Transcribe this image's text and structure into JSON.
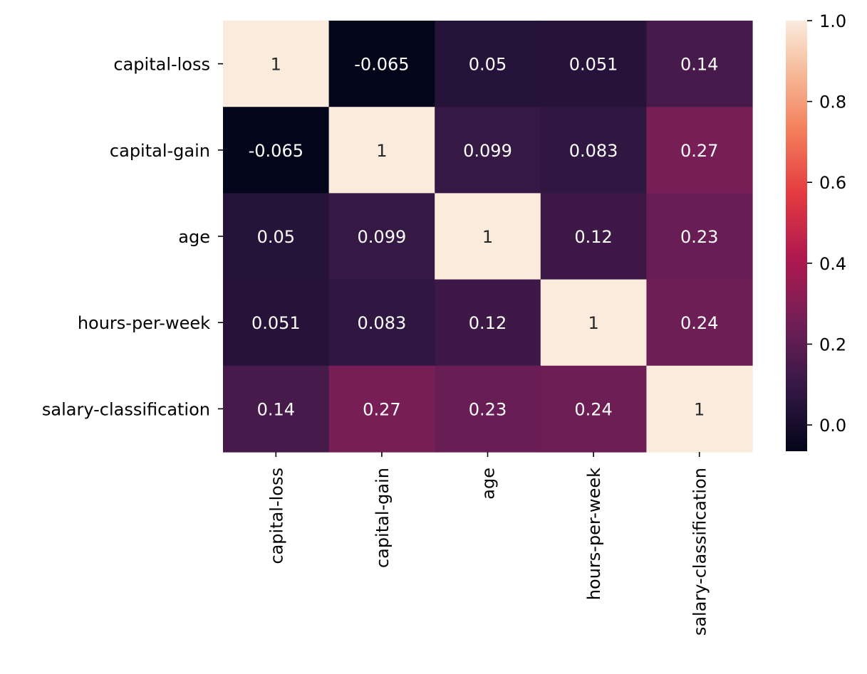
{
  "chart_data": {
    "type": "heatmap",
    "title": "",
    "xlabel": "",
    "ylabel": "",
    "rows": [
      "capital-loss",
      "capital-gain",
      "age",
      "hours-per-week",
      "salary-classification"
    ],
    "columns": [
      "capital-loss",
      "capital-gain",
      "age",
      "hours-per-week",
      "salary-classification"
    ],
    "values": [
      [
        1,
        -0.065,
        0.05,
        0.051,
        0.14
      ],
      [
        -0.065,
        1,
        0.099,
        0.083,
        0.27
      ],
      [
        0.05,
        0.099,
        1,
        0.12,
        0.23
      ],
      [
        0.051,
        0.083,
        0.12,
        1,
        0.24
      ],
      [
        0.14,
        0.27,
        0.23,
        0.24,
        1
      ]
    ],
    "cell_labels": [
      [
        "1",
        "-0.065",
        "0.05",
        "0.051",
        "0.14"
      ],
      [
        "-0.065",
        "1",
        "0.099",
        "0.083",
        "0.27"
      ],
      [
        "0.05",
        "0.099",
        "1",
        "0.12",
        "0.23"
      ],
      [
        "0.051",
        "0.083",
        "0.12",
        "1",
        "0.24"
      ],
      [
        "0.14",
        "0.27",
        "0.23",
        "0.24",
        "1"
      ]
    ],
    "colorbar": {
      "range": [
        -0.065,
        1.0
      ],
      "ticks": [
        0.0,
        0.2,
        0.4,
        0.6,
        0.8,
        1.0
      ],
      "tick_labels": [
        "0.0",
        "0.2",
        "0.4",
        "0.6",
        "0.8",
        "1.0"
      ],
      "colormap": "rocket"
    },
    "grid": false,
    "legend": "colorbar-right"
  }
}
